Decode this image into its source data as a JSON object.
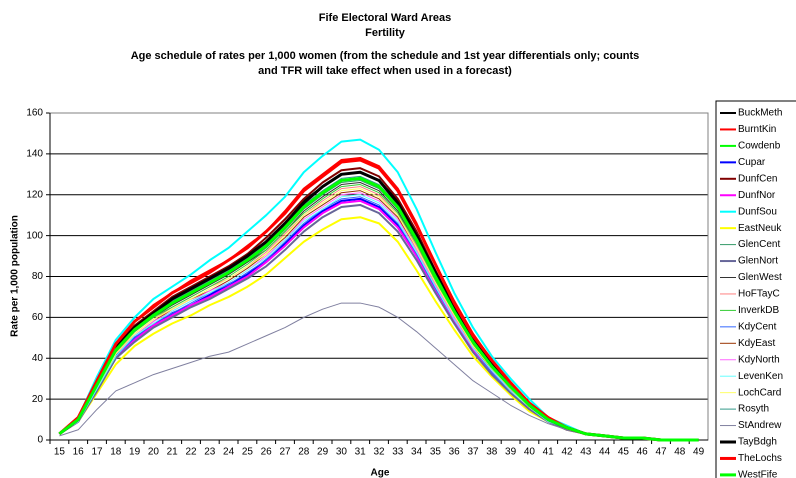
{
  "chart_data": {
    "type": "line",
    "title": "Fife Electoral Ward Areas",
    "subtitle_lines": [
      "Fertility",
      "Age schedule of rates per 1,000 women (from the schedule and 1st year differentials only; counts",
      "and TFR will take effect when used in a forecast)"
    ],
    "x_label": "Age",
    "y_label": "Rate per 1,000 population",
    "categories": [
      "15",
      "16",
      "17",
      "18",
      "19",
      "20",
      "21",
      "22",
      "23",
      "24",
      "25",
      "26",
      "27",
      "28",
      "29",
      "30",
      "31",
      "32",
      "33",
      "34",
      "35",
      "36",
      "37",
      "38",
      "39",
      "40",
      "41",
      "42",
      "43",
      "44",
      "45",
      "46",
      "47",
      "48",
      "49"
    ],
    "ylim": [
      0,
      160
    ],
    "yticks": [
      0,
      20,
      40,
      60,
      80,
      100,
      120,
      140,
      160
    ],
    "grid": true,
    "legend": "right",
    "series": [
      {
        "name": "BuckMeth",
        "color": "#000000",
        "width": 2,
        "values": [
          3,
          10,
          28,
          45,
          55,
          62,
          69,
          74,
          79,
          84,
          90,
          97,
          106,
          117,
          124,
          130,
          131,
          127,
          117,
          100,
          82,
          64,
          49,
          37,
          27,
          17,
          10,
          6,
          3,
          2,
          1,
          1,
          0,
          0,
          0
        ]
      },
      {
        "name": "BurntKin",
        "color": "#ff0000",
        "width": 2,
        "values": [
          3,
          11,
          29,
          47,
          58,
          66,
          72,
          78,
          83,
          88,
          95,
          102,
          112,
          123,
          130,
          137,
          138,
          134,
          123,
          106,
          86,
          68,
          52,
          39,
          28,
          18,
          11,
          6,
          3,
          2,
          1,
          1,
          0,
          0,
          0
        ]
      },
      {
        "name": "Cowdenb",
        "color": "#00ff00",
        "width": 2,
        "values": [
          3,
          10,
          27,
          44,
          54,
          61,
          67,
          72,
          77,
          82,
          88,
          95,
          104,
          114,
          121,
          127,
          128,
          124,
          114,
          98,
          80,
          63,
          48,
          36,
          26,
          17,
          10,
          6,
          3,
          2,
          1,
          1,
          0,
          0,
          0
        ]
      },
      {
        "name": "Cupar",
        "color": "#0000ff",
        "width": 2,
        "values": [
          3,
          9,
          25,
          41,
          50,
          56,
          62,
          66,
          71,
          76,
          81,
          88,
          96,
          105,
          112,
          117,
          118,
          114,
          105,
          90,
          74,
          58,
          44,
          33,
          24,
          16,
          9,
          6,
          3,
          2,
          1,
          1,
          0,
          0,
          0
        ]
      },
      {
        "name": "DunfCen",
        "color": "#800000",
        "width": 2,
        "values": [
          3,
          10,
          28,
          46,
          56,
          63,
          70,
          75,
          80,
          85,
          91,
          99,
          108,
          118,
          126,
          132,
          133,
          129,
          118,
          102,
          83,
          65,
          50,
          37,
          27,
          18,
          10,
          6,
          3,
          2,
          1,
          1,
          0,
          0,
          0
        ]
      },
      {
        "name": "DunfNor",
        "color": "#ff00ff",
        "width": 2,
        "values": [
          3,
          9,
          25,
          40,
          49,
          56,
          61,
          66,
          70,
          75,
          80,
          87,
          95,
          104,
          111,
          116,
          117,
          113,
          104,
          90,
          73,
          58,
          44,
          33,
          24,
          16,
          9,
          5,
          3,
          2,
          1,
          1,
          0,
          0,
          0
        ]
      },
      {
        "name": "DunfSou",
        "color": "#00ffff",
        "width": 2,
        "values": [
          3,
          11,
          31,
          49,
          60,
          69,
          75,
          81,
          88,
          94,
          102,
          110,
          119,
          131,
          139,
          146,
          147,
          142,
          131,
          113,
          92,
          72,
          55,
          41,
          30,
          20,
          11,
          7,
          3,
          2,
          1,
          1,
          0,
          0,
          0
        ]
      },
      {
        "name": "EastNeuk",
        "color": "#ffff00",
        "width": 2,
        "values": [
          3,
          9,
          23,
          37,
          46,
          52,
          57,
          61,
          66,
          70,
          75,
          81,
          89,
          97,
          103,
          108,
          109,
          106,
          97,
          83,
          68,
          54,
          41,
          31,
          22,
          14,
          9,
          5,
          3,
          2,
          1,
          1,
          0,
          0,
          0
        ]
      },
      {
        "name": "GlenCent",
        "color": "#339966",
        "width": 1,
        "values": [
          3,
          10,
          27,
          44,
          54,
          61,
          66,
          71,
          76,
          81,
          87,
          94,
          103,
          113,
          120,
          126,
          127,
          123,
          113,
          97,
          79,
          62,
          48,
          36,
          26,
          17,
          10,
          6,
          3,
          2,
          1,
          1,
          0,
          0,
          0
        ]
      },
      {
        "name": "GlenNort",
        "color": "#666699",
        "width": 2,
        "values": [
          3,
          9,
          24,
          40,
          48,
          55,
          60,
          65,
          69,
          74,
          79,
          85,
          93,
          102,
          109,
          114,
          115,
          111,
          102,
          88,
          72,
          57,
          43,
          32,
          23,
          15,
          9,
          5,
          3,
          2,
          1,
          1,
          0,
          0,
          0
        ]
      },
      {
        "name": "GlenWest",
        "color": "#333333",
        "width": 1,
        "values": [
          3,
          10,
          27,
          43,
          53,
          60,
          66,
          71,
          76,
          81,
          87,
          93,
          102,
          112,
          119,
          125,
          126,
          122,
          112,
          96,
          79,
          62,
          47,
          35,
          26,
          17,
          10,
          6,
          3,
          2,
          1,
          1,
          0,
          0,
          0
        ]
      },
      {
        "name": "HoFTayC",
        "color": "#ff8080",
        "width": 1,
        "values": [
          3,
          10,
          26,
          43,
          52,
          59,
          65,
          70,
          75,
          79,
          85,
          92,
          101,
          110,
          117,
          123,
          124,
          120,
          110,
          95,
          78,
          61,
          47,
          35,
          25,
          16,
          10,
          6,
          3,
          2,
          1,
          1,
          0,
          0,
          0
        ]
      },
      {
        "name": "InverkDB",
        "color": "#33cc33",
        "width": 1,
        "values": [
          3,
          10,
          26,
          43,
          53,
          60,
          65,
          70,
          75,
          80,
          86,
          93,
          102,
          111,
          118,
          124,
          125,
          121,
          111,
          96,
          78,
          62,
          47,
          35,
          25,
          17,
          10,
          6,
          3,
          2,
          1,
          1,
          0,
          0,
          0
        ]
      },
      {
        "name": "KdyCent",
        "color": "#3366ff",
        "width": 1,
        "values": [
          3,
          9,
          25,
          41,
          50,
          57,
          62,
          67,
          72,
          76,
          82,
          88,
          97,
          106,
          113,
          118,
          119,
          115,
          106,
          91,
          74,
          59,
          45,
          33,
          24,
          16,
          9,
          6,
          3,
          2,
          1,
          1,
          0,
          0,
          0
        ]
      },
      {
        "name": "KdyEast",
        "color": "#993300",
        "width": 1,
        "values": [
          3,
          10,
          26,
          42,
          51,
          58,
          64,
          69,
          73,
          78,
          84,
          91,
          99,
          109,
          115,
          121,
          122,
          118,
          109,
          93,
          76,
          60,
          46,
          34,
          25,
          16,
          10,
          6,
          3,
          2,
          1,
          1,
          0,
          0,
          0
        ]
      },
      {
        "name": "KdyNorth",
        "color": "#ff66ff",
        "width": 1,
        "values": [
          3,
          9,
          26,
          42,
          51,
          58,
          63,
          68,
          73,
          77,
          83,
          90,
          98,
          108,
          114,
          120,
          121,
          117,
          108,
          93,
          76,
          60,
          45,
          34,
          25,
          16,
          9,
          6,
          3,
          2,
          1,
          1,
          0,
          0,
          0
        ]
      },
      {
        "name": "LevenKen",
        "color": "#66ffff",
        "width": 1,
        "values": [
          3,
          9,
          25,
          41,
          51,
          57,
          63,
          68,
          72,
          77,
          83,
          89,
          98,
          107,
          113,
          119,
          120,
          116,
          107,
          92,
          75,
          59,
          45,
          34,
          24,
          16,
          9,
          6,
          3,
          2,
          1,
          1,
          0,
          0,
          0
        ]
      },
      {
        "name": "LochCard",
        "color": "#ffff66",
        "width": 1,
        "values": [
          3,
          10,
          26,
          42,
          52,
          59,
          64,
          69,
          74,
          79,
          85,
          91,
          100,
          110,
          116,
          122,
          123,
          119,
          110,
          94,
          77,
          61,
          46,
          35,
          25,
          16,
          10,
          6,
          3,
          2,
          1,
          1,
          0,
          0,
          0
        ]
      },
      {
        "name": "Rosyth",
        "color": "#339988",
        "width": 1,
        "values": [
          3,
          10,
          27,
          44,
          54,
          61,
          68,
          73,
          78,
          83,
          89,
          96,
          105,
          115,
          122,
          128,
          129,
          125,
          115,
          99,
          81,
          63,
          48,
          36,
          26,
          17,
          10,
          6,
          3,
          2,
          1,
          1,
          0,
          0,
          0
        ]
      },
      {
        "name": "StAndrew",
        "color": "#8080a0",
        "width": 1,
        "values": [
          2,
          5,
          15,
          24,
          28,
          32,
          35,
          38,
          41,
          43,
          47,
          51,
          55,
          60,
          64,
          67,
          67,
          65,
          60,
          53,
          45,
          37,
          29,
          23,
          17,
          12,
          8,
          5,
          3,
          2,
          1,
          1,
          0,
          0,
          0
        ]
      },
      {
        "name": "TayBdgh",
        "color": "#000000",
        "width": 3,
        "values": [
          3,
          10,
          28,
          45,
          55,
          62,
          69,
          74,
          79,
          84,
          90,
          97,
          106,
          116,
          124,
          130,
          131,
          127,
          116,
          100,
          82,
          64,
          49,
          37,
          27,
          17,
          10,
          6,
          3,
          2,
          1,
          1,
          0,
          0,
          0
        ]
      },
      {
        "name": "TheLochs",
        "color": "#ff0000",
        "width": 3,
        "values": [
          3,
          11,
          29,
          47,
          58,
          65,
          72,
          77,
          82,
          88,
          94,
          102,
          111,
          122,
          129,
          136,
          137,
          133,
          122,
          105,
          86,
          67,
          51,
          39,
          28,
          18,
          11,
          6,
          3,
          2,
          1,
          1,
          0,
          0,
          0
        ]
      },
      {
        "name": "WestFife",
        "color": "#00ff00",
        "width": 3,
        "values": [
          3,
          10,
          27,
          44,
          54,
          61,
          67,
          72,
          77,
          82,
          88,
          95,
          104,
          114,
          121,
          127,
          128,
          124,
          114,
          98,
          80,
          63,
          48,
          36,
          26,
          17,
          10,
          6,
          3,
          2,
          1,
          1,
          0,
          0,
          0
        ]
      }
    ]
  }
}
